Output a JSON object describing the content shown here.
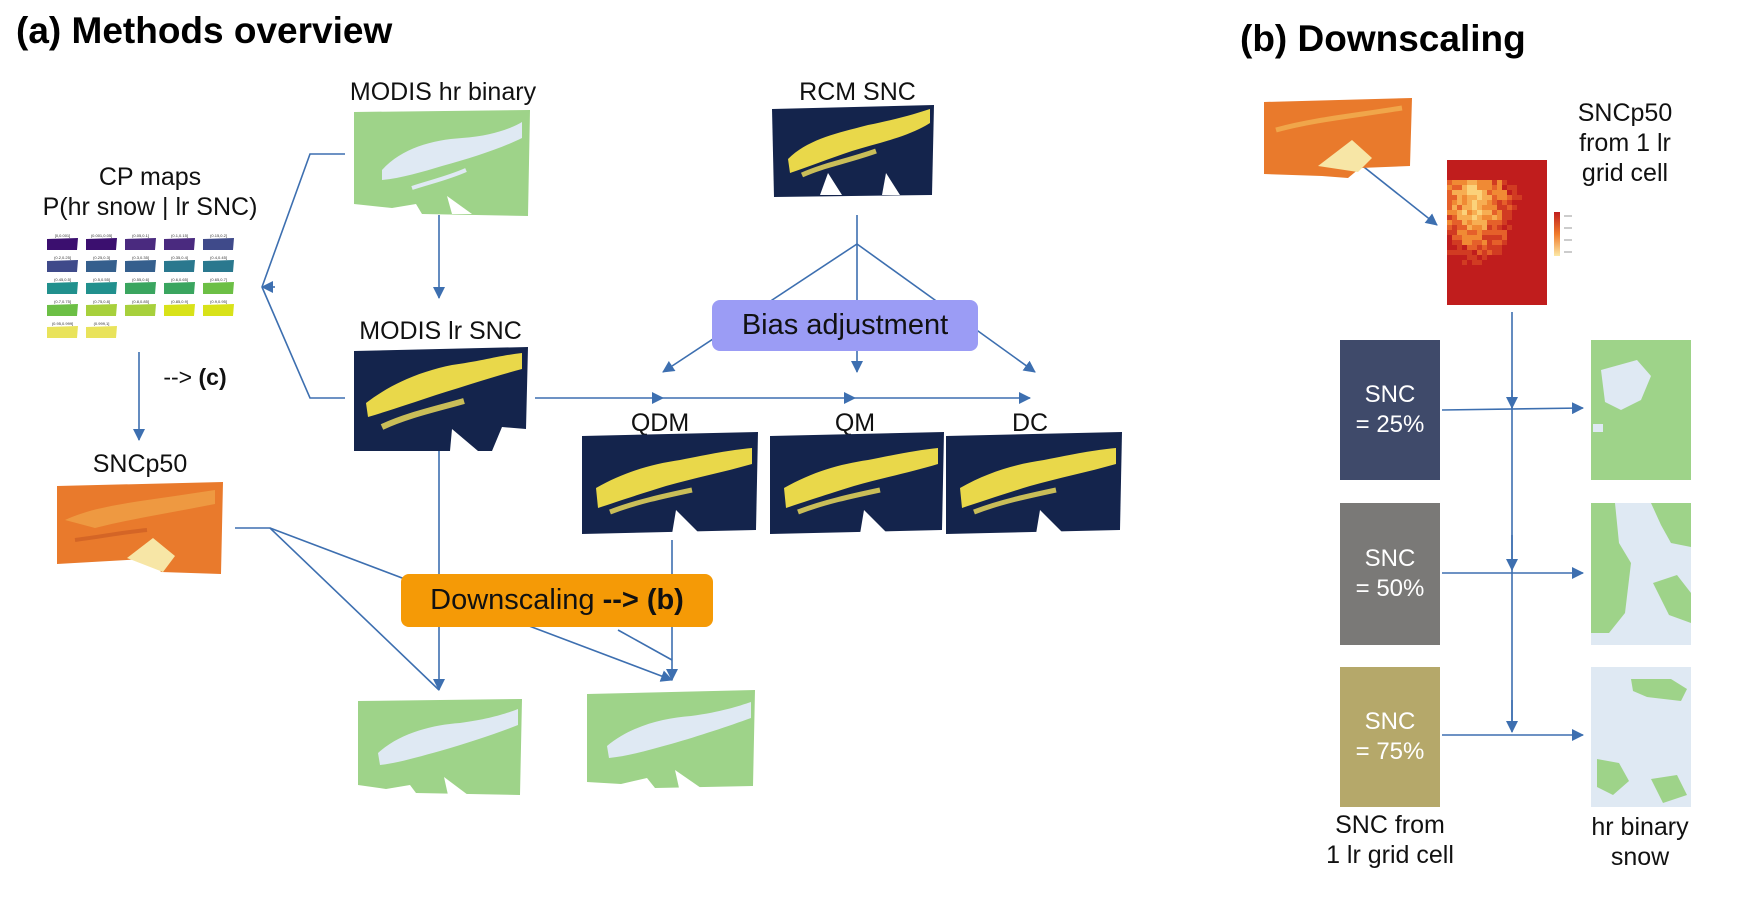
{
  "panel_a": {
    "title": "(a) Methods overview",
    "labels": {
      "modis_hr_binary": "MODIS hr binary",
      "rcm_snc": "RCM SNC",
      "cp_maps_line1": "CP maps",
      "cp_maps_line2": "P(hr snow | lr SNC)",
      "modis_lr_snc": "MODIS lr SNC",
      "sncp50": "SNCp50",
      "qdm": "QDM",
      "qm": "QM",
      "dc": "DC",
      "to_c_prefix": "-->",
      "to_c_bold": "(c)"
    },
    "bias_adjustment": "Bias adjustment",
    "downscaling_text": "Downscaling",
    "downscaling_arrow": "-->",
    "downscaling_ref": "(b)"
  },
  "panel_b": {
    "title": "(b) Downscaling",
    "sncp50_line1": "SNCp50",
    "sncp50_line2": "from 1 lr",
    "sncp50_line3": "grid cell",
    "snc_rows": [
      {
        "line1": "SNC",
        "line2": "= 25%",
        "color": "#3f4a6a"
      },
      {
        "line1": "SNC",
        "line2": "= 50%",
        "color": "#7a7977"
      },
      {
        "line1": "SNC",
        "line2": "= 75%",
        "color": "#b5a86a"
      }
    ],
    "snc_from_line1": "SNC from",
    "snc_from_line2": "1 lr grid cell",
    "hr_binary_line1": "hr binary",
    "hr_binary_line2": "snow"
  },
  "colors": {
    "arrow": "#3d6fb0",
    "bias_fill": "#9b9cf5",
    "downscaling_fill": "#f59a06",
    "snow_green": "#9ed389",
    "snow_white": "#dfe9f3",
    "dark_navy": "#14244c",
    "snow_yellow": "#e9d84a"
  },
  "cp_thumbnails": [
    "[0,0.001]",
    "(0.001,0.05]",
    "(0.05,0.1]",
    "(0.1,0.15]",
    "(0.15,0.2]",
    "(0.2,0.25]",
    "(0.25,0.3]",
    "(0.3,0.35]",
    "(0.35,0.4]",
    "(0.4,0.45]",
    "(0.45,0.5]",
    "(0.5,0.55]",
    "(0.55,0.6]",
    "(0.6,0.65]",
    "(0.65,0.7]",
    "(0.7,0.75]",
    "(0.75,0.8]",
    "(0.8,0.85]",
    "(0.85,0.9]",
    "(0.9,0.95]",
    "(0.95,0.999]",
    "(0.999,1]"
  ]
}
